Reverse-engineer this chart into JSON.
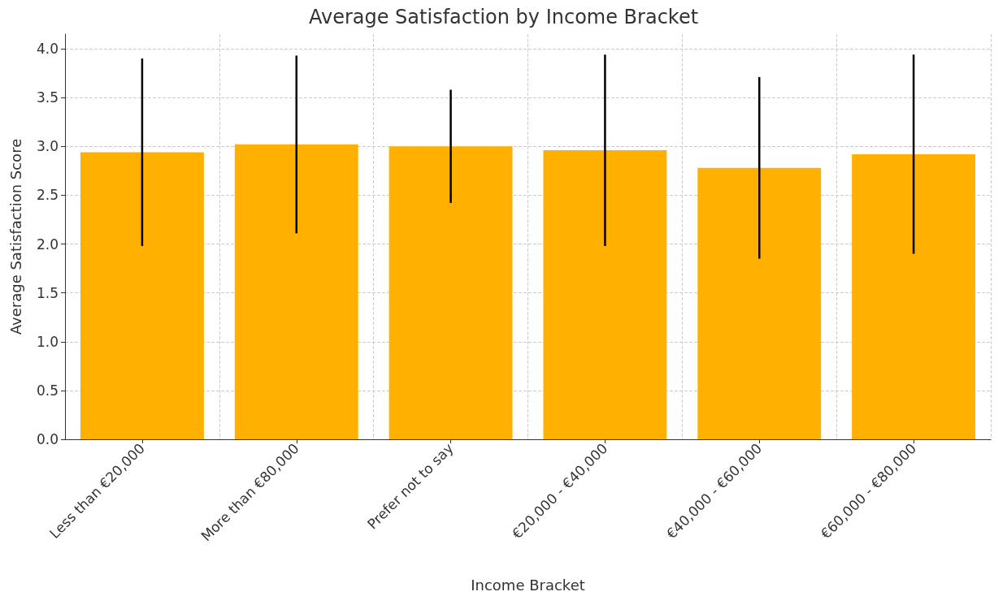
{
  "chart_data": {
    "type": "bar",
    "title": "Average Satisfaction by Income Bracket",
    "xlabel": "Income Bracket",
    "ylabel": "Average Satisfaction Score",
    "categories": [
      "Less than €20,000",
      "More than €80,000",
      "Prefer not to say",
      "€20,000 - €40,000",
      "€40,000 - €60,000",
      "€60,000 - €80,000"
    ],
    "values": [
      2.94,
      3.02,
      3.0,
      2.96,
      2.78,
      2.92
    ],
    "errors": [
      0.96,
      0.91,
      0.58,
      0.98,
      0.93,
      1.02
    ],
    "color": "#ffb000",
    "ylim": [
      0,
      4.15
    ],
    "yticks": [
      {
        "value": 0,
        "label": "0.0"
      },
      0.5,
      {
        "value": 1,
        "label": "1.0"
      },
      1.5,
      {
        "value": 2,
        "label": "2.0"
      },
      2.5,
      {
        "value": 3,
        "label": "3.0"
      },
      3.5,
      {
        "value": 4,
        "label": "4.0"
      }
    ],
    "grid": true
  }
}
